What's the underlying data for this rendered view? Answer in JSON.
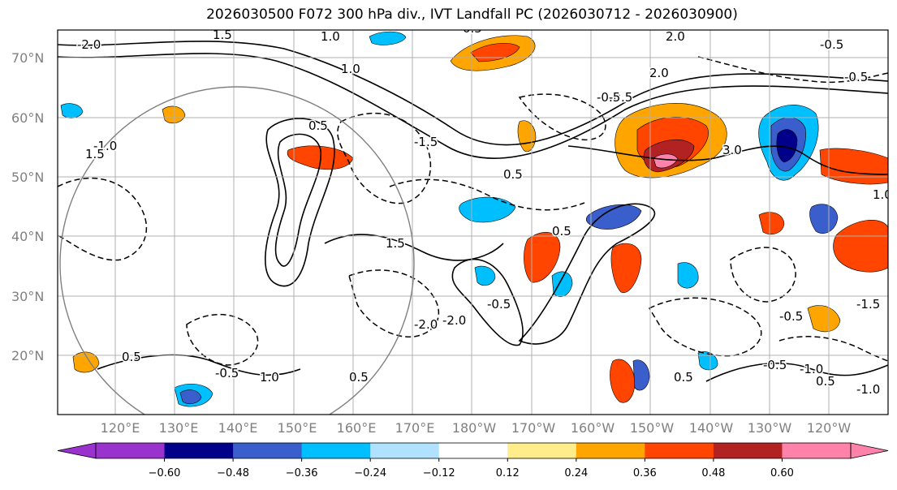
{
  "title": "2026030500 F072 300 hPa div., IVT Landfall PC (2026030712 - 2026030900)",
  "lat_labels": [
    "70°N",
    "60°N",
    "50°N",
    "40°N",
    "30°N",
    "20°N"
  ],
  "lon_labels": [
    "120°E",
    "130°E",
    "140°E",
    "150°E",
    "160°E",
    "170°E",
    "180°W",
    "170°W",
    "160°W",
    "150°W",
    "140°W",
    "130°W",
    "120°W"
  ],
  "colorbar": {
    "colors": [
      "#9a32cd",
      "#00008b",
      "#3a5fcd",
      "#00bfff",
      "#b0e2ff",
      "#ffffff",
      "#ffec8b",
      "#ffa500",
      "#ff4500",
      "#b22222",
      "#ff82ab"
    ],
    "tick_labels": [
      "−0.60",
      "−0.48",
      "−0.36",
      "−0.24",
      "−0.12",
      "0.12",
      "0.24",
      "0.36",
      "0.48",
      "0.60"
    ]
  },
  "contour_labels": [
    "1.0",
    "2.0",
    "-0.5",
    "0.5",
    "-1.0",
    "1.5",
    "-2.0",
    "3.0",
    "-1.5",
    "0.5",
    "-0.5",
    "-1.0",
    "1.0",
    "0.5",
    "-0.5",
    "1.5",
    "-2.0",
    "-0.5",
    "0.5",
    "1.0",
    "-0.5",
    "0.5",
    "0.5",
    "-1.0",
    "-0.5",
    "-0.5",
    "-0.5",
    "0.5",
    "1.0",
    "1.5",
    "-2.0",
    "2.0",
    "-1.5",
    "0.5"
  ]
}
